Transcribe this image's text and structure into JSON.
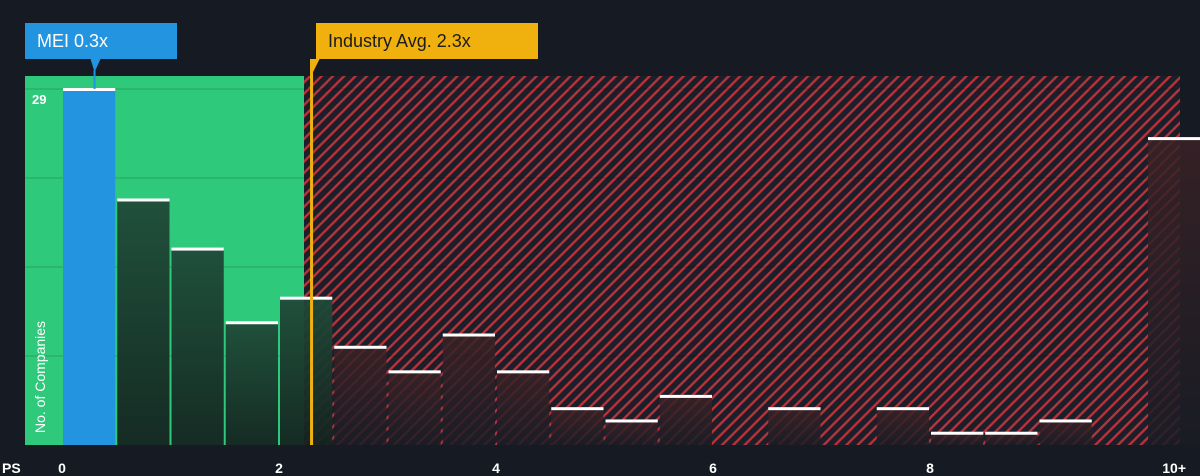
{
  "callouts": {
    "company": "MEI 0.3x",
    "industry": "Industry Avg. 2.3x"
  },
  "chart_data": {
    "type": "bar",
    "xlabel": "PS",
    "ylabel": "No. of Companies",
    "x_tick_labels": [
      "0",
      "2",
      "4",
      "6",
      "8",
      "10+"
    ],
    "y_tick_labels": [
      "29"
    ],
    "ylim": [
      0,
      29
    ],
    "company_value": 0.3,
    "industry_avg": 2.3,
    "bins": [
      {
        "start": 0.0,
        "count": 29
      },
      {
        "start": 0.5,
        "count": 20
      },
      {
        "start": 1.0,
        "count": 16
      },
      {
        "start": 1.5,
        "count": 10
      },
      {
        "start": 2.0,
        "count": 12
      },
      {
        "start": 2.5,
        "count": 8
      },
      {
        "start": 3.0,
        "count": 6
      },
      {
        "start": 3.5,
        "count": 9
      },
      {
        "start": 4.0,
        "count": 6
      },
      {
        "start": 4.5,
        "count": 3
      },
      {
        "start": 5.0,
        "count": 2
      },
      {
        "start": 5.5,
        "count": 4
      },
      {
        "start": 6.0,
        "count": 0
      },
      {
        "start": 6.5,
        "count": 3
      },
      {
        "start": 7.0,
        "count": 0
      },
      {
        "start": 7.5,
        "count": 3
      },
      {
        "start": 8.0,
        "count": 1
      },
      {
        "start": 8.5,
        "count": 1
      },
      {
        "start": 9.0,
        "count": 2
      },
      {
        "start": 9.5,
        "count": 0
      },
      {
        "start": 10.0,
        "count": 25
      }
    ],
    "colors": {
      "background": "#151a23",
      "fair_zone": "#2ec97a",
      "overvalued_zone": "#c0353b",
      "company_bar": "#2394df",
      "industry_line": "#f0b10e",
      "bar_cap": "#ffffff"
    }
  }
}
